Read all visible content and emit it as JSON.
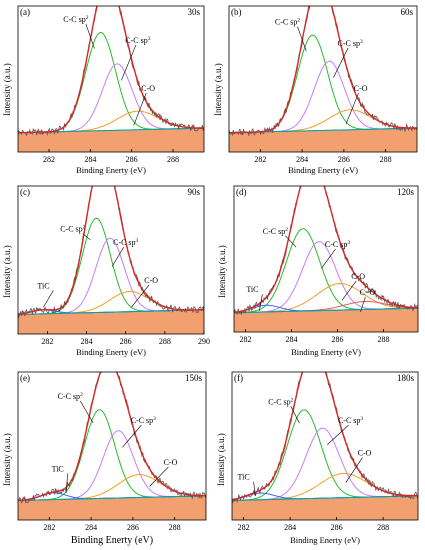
{
  "chart_data": [
    {
      "type": "line",
      "panel_label": "(a)",
      "time_label": "30s",
      "xlabel": "Binding Enerty (eV)",
      "ylabel": "Intensity (a.u.)",
      "xlim": [
        280.5,
        289.5
      ],
      "ticks": [
        282,
        284,
        286,
        288
      ],
      "grid": false,
      "legend": "none",
      "components": [
        {
          "label": "C-C sp2",
          "center": 284.5,
          "height": 0.74,
          "width": 0.72,
          "color": "#2eb82e"
        },
        {
          "label": "C-C sp3",
          "center": 285.3,
          "height": 0.5,
          "width": 0.72,
          "color": "#c77dff"
        },
        {
          "label": "C-O",
          "center": 286.3,
          "height": 0.14,
          "width": 1.0,
          "color": "#f0a020"
        }
      ],
      "annotations": [
        {
          "text": "C-C sp",
          "sup": "2",
          "x": 283.3,
          "y": 0.88,
          "target": [
            284.2,
            0.68
          ]
        },
        {
          "text": "C-C sp",
          "sup": "3",
          "x": 286.3,
          "y": 0.72,
          "target": [
            285.5,
            0.44
          ]
        },
        {
          "text": "C-O",
          "x": 286.8,
          "y": 0.36,
          "target": [
            286.1,
            0.1
          ]
        }
      ]
    },
    {
      "type": "line",
      "panel_label": "(b)",
      "time_label": "60s",
      "xlabel": "Binding Enerty (eV)",
      "ylabel": "Intensity (a.u.)",
      "xlim": [
        280.5,
        289.5
      ],
      "ticks": [
        282,
        284,
        286,
        288
      ],
      "grid": false,
      "legend": "none",
      "components": [
        {
          "label": "C-C sp2",
          "center": 284.5,
          "height": 0.72,
          "width": 0.72,
          "color": "#2eb82e"
        },
        {
          "label": "C-C sp3",
          "center": 285.3,
          "height": 0.52,
          "width": 0.72,
          "color": "#c77dff"
        },
        {
          "label": "C-O",
          "center": 286.3,
          "height": 0.15,
          "width": 1.0,
          "color": "#f0a020"
        }
      ],
      "annotations": [
        {
          "text": "C-C sp",
          "sup": "2",
          "x": 283.3,
          "y": 0.86,
          "target": [
            284.2,
            0.66
          ]
        },
        {
          "text": "C-C sp",
          "sup": "3",
          "x": 286.3,
          "y": 0.7,
          "target": [
            285.5,
            0.46
          ]
        },
        {
          "text": "C-O",
          "x": 286.8,
          "y": 0.36,
          "target": [
            286.1,
            0.11
          ]
        }
      ]
    },
    {
      "type": "line",
      "panel_label": "(c)",
      "time_label": "90s",
      "xlabel": "Binding Enerty (eV)",
      "ylabel": "Intensity (a.u.)",
      "xlim": [
        280.5,
        290.0
      ],
      "ticks": [
        282,
        284,
        286,
        288,
        290
      ],
      "grid": false,
      "legend": "none",
      "components": [
        {
          "label": "C-C sp2",
          "center": 284.5,
          "height": 0.7,
          "width": 0.72,
          "color": "#2eb82e"
        },
        {
          "label": "C-C sp3",
          "center": 285.2,
          "height": 0.55,
          "width": 0.72,
          "color": "#c77dff"
        },
        {
          "label": "C-O",
          "center": 286.2,
          "height": 0.15,
          "width": 1.0,
          "color": "#f0a020"
        },
        {
          "label": "TiC",
          "center": 281.8,
          "height": 0.03,
          "width": 0.6,
          "color": "#4060ff"
        }
      ],
      "annotations": [
        {
          "text": "C-C sp",
          "sup": "2",
          "x": 283.3,
          "y": 0.66,
          "target": [
            284.2,
            0.6
          ]
        },
        {
          "text": "C-C sp",
          "sup": "3",
          "x": 286.0,
          "y": 0.56,
          "target": [
            285.3,
            0.4
          ]
        },
        {
          "text": "C-O",
          "x": 287.3,
          "y": 0.28,
          "target": [
            286.3,
            0.1
          ]
        },
        {
          "text": "TiC",
          "x": 281.8,
          "y": 0.24,
          "target": [
            281.8,
            0.1
          ]
        }
      ]
    },
    {
      "type": "line",
      "panel_label": "(d)",
      "time_label": "120s",
      "xlabel": "Binding Enerty (eV)",
      "ylabel": "Intensity (a.u.)",
      "xlim": [
        281.5,
        289.5
      ],
      "ticks": [
        282,
        284,
        286,
        288
      ],
      "grid": false,
      "legend": "none",
      "components": [
        {
          "label": "C-C sp2",
          "center": 284.5,
          "height": 0.62,
          "width": 0.72,
          "color": "#2eb82e"
        },
        {
          "label": "C-C sp3",
          "center": 285.2,
          "height": 0.52,
          "width": 0.72,
          "color": "#c77dff"
        },
        {
          "label": "C-O",
          "center": 286.1,
          "height": 0.2,
          "width": 1.0,
          "color": "#f0a020"
        },
        {
          "label": "C=O",
          "center": 287.2,
          "height": 0.06,
          "width": 0.9,
          "color": "#e35b5b"
        },
        {
          "label": "TiC",
          "center": 282.9,
          "height": 0.05,
          "width": 0.6,
          "color": "#4060ff"
        }
      ],
      "annotations": [
        {
          "text": "C-C sp",
          "sup": "2",
          "x": 283.3,
          "y": 0.64,
          "target": [
            284.2,
            0.54
          ]
        },
        {
          "text": "C-C sp",
          "sup": "3",
          "x": 286.0,
          "y": 0.54,
          "target": [
            285.3,
            0.38
          ]
        },
        {
          "text": "C-O",
          "x": 286.9,
          "y": 0.3,
          "target": [
            286.2,
            0.14
          ]
        },
        {
          "text": "C=O",
          "x": 287.3,
          "y": 0.18,
          "target": [
            287.0,
            0.05
          ]
        },
        {
          "text": "TiC",
          "x": 282.3,
          "y": 0.2,
          "target": [
            282.6,
            0.06
          ]
        }
      ]
    },
    {
      "type": "line",
      "panel_label": "(e)",
      "time_label": "150s",
      "xlabel": "Binding Enerty (eV)",
      "ylabel": "Intensity (a.u.)",
      "xlim": [
        280.5,
        289.5
      ],
      "ticks": [
        282,
        284,
        286,
        288
      ],
      "grid": false,
      "legend": "none",
      "components": [
        {
          "label": "C-C sp2",
          "center": 284.4,
          "height": 0.66,
          "width": 0.72,
          "color": "#2eb82e"
        },
        {
          "label": "C-C sp3",
          "center": 285.3,
          "height": 0.5,
          "width": 0.72,
          "color": "#c77dff"
        },
        {
          "label": "C-O",
          "center": 286.3,
          "height": 0.17,
          "width": 1.0,
          "color": "#f0a020"
        },
        {
          "label": "TiC",
          "center": 282.2,
          "height": 0.05,
          "width": 0.6,
          "color": "#4060ff"
        }
      ],
      "annotations": [
        {
          "text": "C-C sp",
          "sup": "2",
          "x": 283.0,
          "y": 0.8,
          "target": [
            284.1,
            0.62
          ]
        },
        {
          "text": "C-C sp",
          "sup": "3",
          "x": 286.5,
          "y": 0.62,
          "target": [
            285.5,
            0.44
          ]
        },
        {
          "text": "C-O",
          "x": 287.8,
          "y": 0.31,
          "target": [
            286.8,
            0.15
          ]
        },
        {
          "text": "TiC",
          "x": 282.4,
          "y": 0.26,
          "target": [
            282.8,
            0.1
          ]
        }
      ]
    },
    {
      "type": "line",
      "panel_label": "(f)",
      "time_label": "180s",
      "xlabel": "Binding Enerty (eV)",
      "ylabel": "Intensity (a.u.)",
      "xlim": [
        281.5,
        289.5
      ],
      "ticks": [
        282,
        284,
        286,
        288
      ],
      "grid": false,
      "legend": "none",
      "components": [
        {
          "label": "C-C sp2",
          "center": 284.6,
          "height": 0.66,
          "width": 0.72,
          "color": "#2eb82e"
        },
        {
          "label": "C-C sp3",
          "center": 285.4,
          "height": 0.52,
          "width": 0.72,
          "color": "#c77dff"
        },
        {
          "label": "C-O",
          "center": 286.3,
          "height": 0.18,
          "width": 1.0,
          "color": "#f0a020"
        },
        {
          "label": "TiC",
          "center": 282.7,
          "height": 0.05,
          "width": 0.6,
          "color": "#4060ff"
        }
      ],
      "annotations": [
        {
          "text": "C-C sp",
          "sup": "2",
          "x": 283.6,
          "y": 0.76,
          "target": [
            284.4,
            0.62
          ]
        },
        {
          "text": "C-C sp",
          "sup": "3",
          "x": 286.6,
          "y": 0.62,
          "target": [
            285.6,
            0.46
          ]
        },
        {
          "text": "C-O",
          "x": 287.2,
          "y": 0.38,
          "target": [
            286.4,
            0.18
          ]
        },
        {
          "text": "TiC",
          "x": 282.0,
          "y": 0.2,
          "target": [
            282.5,
            0.08
          ]
        }
      ]
    }
  ],
  "colors": {
    "envelope": "#d62828",
    "raw_data": "#555555",
    "background_fill": "#f3a070",
    "background_line": "#00a5a5"
  }
}
